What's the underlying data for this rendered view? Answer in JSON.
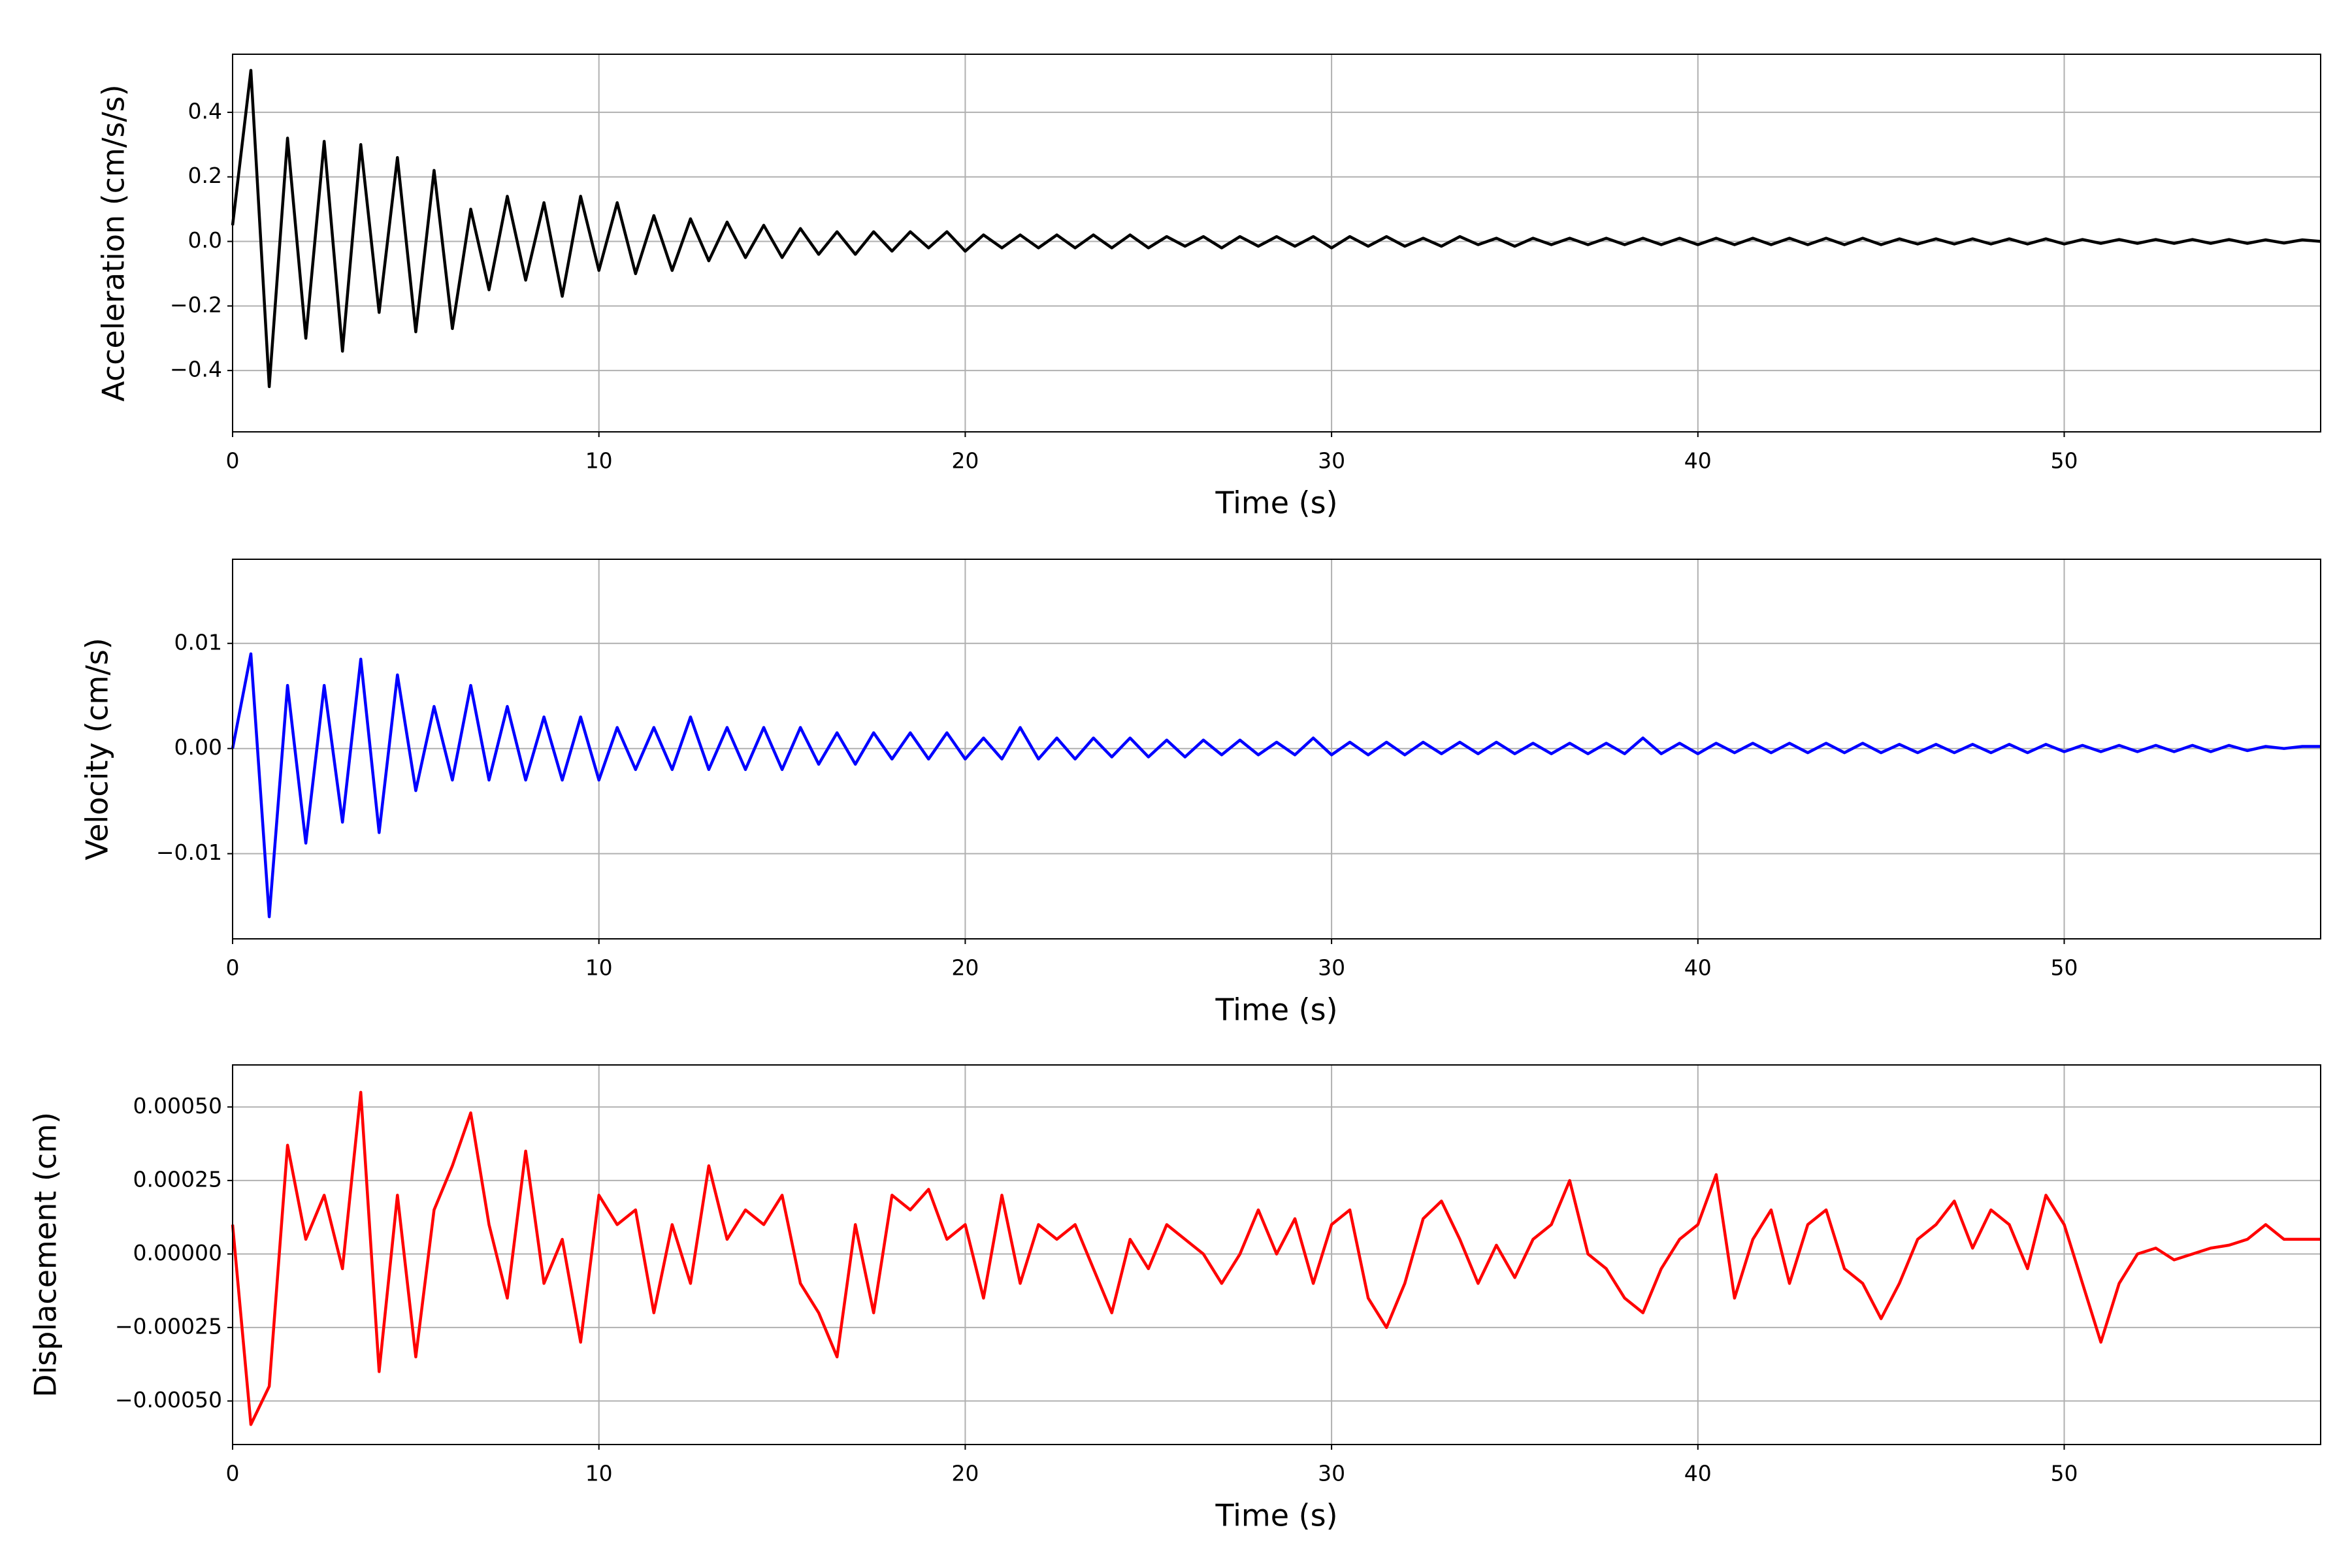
{
  "chart_data": [
    {
      "type": "line",
      "xlabel": "Time (s)",
      "ylabel": "Acceleration (cm/s/s)",
      "color": "#000000",
      "xlim": [
        0,
        57
      ],
      "xticks": [
        0,
        10,
        20,
        30,
        40,
        50
      ],
      "ylim": [
        -0.59,
        0.58
      ],
      "yticks": [
        {
          "value": -0.4,
          "label": "−0.4"
        },
        {
          "value": -0.2,
          "label": "−0.2"
        },
        {
          "value": 0,
          "label": "0.0"
        },
        0.2,
        0.4
      ],
      "grid": true,
      "x": [
        0,
        0.5,
        1,
        1.5,
        2,
        2.5,
        3,
        3.5,
        4,
        4.5,
        5,
        5.5,
        6,
        6.5,
        7,
        7.5,
        8,
        8.5,
        9,
        9.5,
        10,
        10.5,
        11,
        11.5,
        12,
        12.5,
        13,
        13.5,
        14,
        14.5,
        15,
        15.5,
        16,
        16.5,
        17,
        17.5,
        18,
        18.5,
        19,
        19.5,
        20,
        20.5,
        21,
        21.5,
        22,
        22.5,
        23,
        23.5,
        24,
        24.5,
        25,
        25.5,
        26,
        26.5,
        27,
        27.5,
        28,
        28.5,
        29,
        29.5,
        30,
        30.5,
        31,
        31.5,
        32,
        32.5,
        33,
        33.5,
        34,
        34.5,
        35,
        35.5,
        36,
        36.5,
        37,
        37.5,
        38,
        38.5,
        39,
        39.5,
        40,
        40.5,
        41,
        41.5,
        42,
        42.5,
        43,
        43.5,
        44,
        44.5,
        45,
        45.5,
        46,
        46.5,
        47,
        47.5,
        48,
        48.5,
        49,
        49.5,
        50,
        50.5,
        51,
        51.5,
        52,
        52.5,
        53,
        53.5,
        54,
        54.5,
        55,
        55.5,
        56,
        56.5,
        57
      ],
      "values": [
        0.05,
        0.53,
        -0.45,
        0.32,
        -0.3,
        0.31,
        -0.34,
        0.3,
        -0.22,
        0.26,
        -0.28,
        0.22,
        -0.27,
        0.1,
        -0.15,
        0.14,
        -0.12,
        0.12,
        -0.17,
        0.14,
        -0.09,
        0.12,
        -0.1,
        0.08,
        -0.09,
        0.07,
        -0.06,
        0.06,
        -0.05,
        0.05,
        -0.05,
        0.04,
        -0.04,
        0.03,
        -0.04,
        0.03,
        -0.03,
        0.03,
        -0.02,
        0.03,
        -0.03,
        0.02,
        -0.02,
        0.02,
        -0.02,
        0.02,
        -0.02,
        0.02,
        -0.02,
        0.02,
        -0.02,
        0.015,
        -0.015,
        0.015,
        -0.02,
        0.015,
        -0.015,
        0.015,
        -0.015,
        0.015,
        -0.02,
        0.015,
        -0.015,
        0.015,
        -0.015,
        0.01,
        -0.015,
        0.015,
        -0.01,
        0.01,
        -0.015,
        0.01,
        -0.01,
        0.01,
        -0.01,
        0.01,
        -0.01,
        0.01,
        -0.01,
        0.01,
        -0.01,
        0.01,
        -0.01,
        0.01,
        -0.01,
        0.01,
        -0.01,
        0.01,
        -0.01,
        0.01,
        -0.01,
        0.008,
        -0.008,
        0.008,
        -0.008,
        0.008,
        -0.008,
        0.008,
        -0.008,
        0.008,
        -0.008,
        0.006,
        -0.006,
        0.006,
        -0.006,
        0.006,
        -0.006,
        0.006,
        -0.006,
        0.006,
        -0.006,
        0.005,
        -0.005,
        0.005,
        0.0
      ]
    },
    {
      "type": "line",
      "xlabel": "Time (s)",
      "ylabel": "Velocity (cm/s)",
      "color": "#0000ff",
      "xlim": [
        0,
        57
      ],
      "xticks": [
        0,
        10,
        20,
        30,
        40,
        50
      ],
      "ylim": [
        -0.0181,
        0.018
      ],
      "yticks": [
        {
          "value": -0.01,
          "label": "−0.01"
        },
        {
          "value": 0,
          "label": "0.00"
        },
        0.01
      ],
      "grid": true,
      "x": [
        0,
        0.5,
        1,
        1.5,
        2,
        2.5,
        3,
        3.5,
        4,
        4.5,
        5,
        5.5,
        6,
        6.5,
        7,
        7.5,
        8,
        8.5,
        9,
        9.5,
        10,
        10.5,
        11,
        11.5,
        12,
        12.5,
        13,
        13.5,
        14,
        14.5,
        15,
        15.5,
        16,
        16.5,
        17,
        17.5,
        18,
        18.5,
        19,
        19.5,
        20,
        20.5,
        21,
        21.5,
        22,
        22.5,
        23,
        23.5,
        24,
        24.5,
        25,
        25.5,
        26,
        26.5,
        27,
        27.5,
        28,
        28.5,
        29,
        29.5,
        30,
        30.5,
        31,
        31.5,
        32,
        32.5,
        33,
        33.5,
        34,
        34.5,
        35,
        35.5,
        36,
        36.5,
        37,
        37.5,
        38,
        38.5,
        39,
        39.5,
        40,
        40.5,
        41,
        41.5,
        42,
        42.5,
        43,
        43.5,
        44,
        44.5,
        45,
        45.5,
        46,
        46.5,
        47,
        47.5,
        48,
        48.5,
        49,
        49.5,
        50,
        50.5,
        51,
        51.5,
        52,
        52.5,
        53,
        53.5,
        54,
        54.5,
        55,
        55.5,
        56,
        56.5,
        57
      ],
      "values": [
        0.0,
        0.009,
        -0.016,
        0.006,
        -0.009,
        0.006,
        -0.007,
        0.0085,
        -0.008,
        0.007,
        -0.004,
        0.004,
        -0.003,
        0.006,
        -0.003,
        0.004,
        -0.003,
        0.003,
        -0.003,
        0.003,
        -0.003,
        0.002,
        -0.002,
        0.002,
        -0.002,
        0.003,
        -0.002,
        0.002,
        -0.002,
        0.002,
        -0.002,
        0.002,
        -0.0015,
        0.0015,
        -0.0015,
        0.0015,
        -0.001,
        0.0015,
        -0.001,
        0.0015,
        -0.001,
        0.001,
        -0.001,
        0.002,
        -0.001,
        0.001,
        -0.001,
        0.001,
        -0.0008,
        0.001,
        -0.0008,
        0.0008,
        -0.0008,
        0.0008,
        -0.0006,
        0.0008,
        -0.0006,
        0.0006,
        -0.0006,
        0.001,
        -0.0006,
        0.0006,
        -0.0006,
        0.0006,
        -0.0006,
        0.0006,
        -0.0005,
        0.0006,
        -0.0005,
        0.0006,
        -0.0005,
        0.0005,
        -0.0005,
        0.0005,
        -0.0005,
        0.0005,
        -0.0005,
        0.001,
        -0.0005,
        0.0005,
        -0.0005,
        0.0005,
        -0.0004,
        0.0005,
        -0.0004,
        0.0005,
        -0.0004,
        0.0005,
        -0.0004,
        0.0005,
        -0.0004,
        0.0004,
        -0.0004,
        0.0004,
        -0.0004,
        0.0004,
        -0.0004,
        0.0004,
        -0.0004,
        0.0004,
        -0.0003,
        0.0003,
        -0.0003,
        0.0003,
        -0.0003,
        0.0003,
        -0.0003,
        0.0003,
        -0.0003,
        0.0003,
        -0.0002,
        0.0002,
        0.0,
        0.0002,
        0.0002
      ]
    },
    {
      "type": "line",
      "xlabel": "Time (s)",
      "ylabel": "Displacement (cm)",
      "color": "#ff0000",
      "xlim": [
        0,
        57
      ],
      "xticks": [
        0,
        10,
        20,
        30,
        40,
        50
      ],
      "ylim": [
        -0.000648,
        0.000643
      ],
      "yticks": [
        {
          "value": -0.0005,
          "label": "−0.00050"
        },
        {
          "value": -0.00025,
          "label": "−0.00025"
        },
        {
          "value": 0,
          "label": "0.00000"
        },
        {
          "value": 0.00025,
          "label": "0.00025"
        },
        {
          "value": 0.0005,
          "label": "0.00050"
        }
      ],
      "grid": true,
      "x": [
        0,
        0.5,
        1,
        1.5,
        2,
        2.5,
        3,
        3.5,
        4,
        4.5,
        5,
        5.5,
        6,
        6.5,
        7,
        7.5,
        8,
        8.5,
        9,
        9.5,
        10,
        10.5,
        11,
        11.5,
        12,
        12.5,
        13,
        13.5,
        14,
        14.5,
        15,
        15.5,
        16,
        16.5,
        17,
        17.5,
        18,
        18.5,
        19,
        19.5,
        20,
        20.5,
        21,
        21.5,
        22,
        22.5,
        23,
        23.5,
        24,
        24.5,
        25,
        25.5,
        26,
        26.5,
        27,
        27.5,
        28,
        28.5,
        29,
        29.5,
        30,
        30.5,
        31,
        31.5,
        32,
        32.5,
        33,
        33.5,
        34,
        34.5,
        35,
        35.5,
        36,
        36.5,
        37,
        37.5,
        38,
        38.5,
        39,
        39.5,
        40,
        40.5,
        41,
        41.5,
        42,
        42.5,
        43,
        43.5,
        44,
        44.5,
        45,
        45.5,
        46,
        46.5,
        47,
        47.5,
        48,
        48.5,
        49,
        49.5,
        50,
        50.5,
        51,
        51.5,
        52,
        52.5,
        53,
        53.5,
        54,
        54.5,
        55,
        55.5,
        56,
        56.5,
        57
      ],
      "values": [
        0.0001,
        -0.00058,
        -0.00045,
        0.00037,
        5e-05,
        0.0002,
        -5e-05,
        0.00055,
        -0.0004,
        0.0002,
        -0.00035,
        0.00015,
        0.0003,
        0.00048,
        0.0001,
        -0.00015,
        0.00035,
        -0.0001,
        5e-05,
        -0.0003,
        0.0002,
        0.0001,
        0.00015,
        -0.0002,
        0.0001,
        -0.0001,
        0.0003,
        5e-05,
        0.00015,
        0.0001,
        0.0002,
        -0.0001,
        -0.0002,
        -0.00035,
        0.0001,
        -0.0002,
        0.0002,
        0.00015,
        0.00022,
        5e-05,
        0.0001,
        -0.00015,
        0.0002,
        -0.0001,
        0.0001,
        5e-05,
        0.0001,
        -5e-05,
        -0.0002,
        5e-05,
        -5e-05,
        0.0001,
        5e-05,
        0.0,
        -0.0001,
        0.0,
        0.00015,
        0.0,
        0.00012,
        -0.0001,
        0.0001,
        0.00015,
        -0.00015,
        -0.00025,
        -0.0001,
        0.00012,
        0.00018,
        5e-05,
        -0.0001,
        3e-05,
        -8e-05,
        5e-05,
        0.0001,
        0.00025,
        0.0,
        -5e-05,
        -0.00015,
        -0.0002,
        -5e-05,
        5e-05,
        0.0001,
        0.00027,
        -0.00015,
        5e-05,
        0.00015,
        -0.0001,
        0.0001,
        0.00015,
        -5e-05,
        -0.0001,
        -0.00022,
        -0.0001,
        5e-05,
        0.0001,
        0.00018,
        2e-05,
        0.00015,
        0.0001,
        -5e-05,
        0.0002,
        0.0001,
        -0.0001,
        -0.0003,
        -0.0001,
        0.0,
        2e-05,
        -2e-05,
        0.0,
        2e-05,
        3e-05,
        5e-05,
        0.0001,
        5e-05,
        5e-05,
        5e-05
      ]
    }
  ]
}
